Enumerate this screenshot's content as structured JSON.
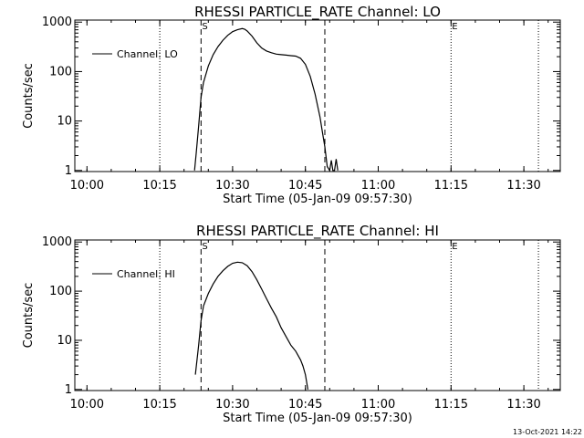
{
  "footer_date": "13-Oct-2021 14:22",
  "chart_data": [
    {
      "type": "line",
      "title": "RHESSI PARTICLE_RATE Channel: LO",
      "xlabel": "Start Time (05-Jan-09 09:57:30)",
      "ylabel": "Counts/sec",
      "y_scale": "log",
      "ylim": [
        0.95,
        1100
      ],
      "x_range": [
        "09:57:30",
        "11:37:30"
      ],
      "xticks": [
        "10:00",
        "10:15",
        "10:30",
        "10:45",
        "11:00",
        "11:15",
        "11:30"
      ],
      "yticks": [
        "1",
        "10",
        "100",
        "1000"
      ],
      "legend": {
        "position": "top-left",
        "entries": [
          "Channel: LO"
        ]
      },
      "markers": [
        {
          "time": "10:23:30",
          "style": "dashed",
          "label": "S"
        },
        {
          "time": "10:49:00",
          "style": "dashed",
          "label": ""
        },
        {
          "time": "10:15:00",
          "style": "dotted",
          "label": ""
        },
        {
          "time": "11:15:00",
          "style": "dotted",
          "label": "E"
        },
        {
          "time": "11:33:00",
          "style": "dotted",
          "label": ""
        }
      ],
      "series": [
        {
          "x": [
            "10:22:10",
            "10:22:30",
            "10:23:00",
            "10:23:30",
            "10:24:00",
            "10:25:00",
            "10:26:00",
            "10:27:00",
            "10:28:00",
            "10:29:00",
            "10:30:00",
            "10:31:00",
            "10:32:00",
            "10:32:30",
            "10:33:00",
            "10:34:00",
            "10:35:00",
            "10:36:00",
            "10:37:00",
            "10:38:00",
            "10:39:00",
            "10:40:00",
            "10:41:00",
            "10:42:00",
            "10:43:00",
            "10:44:00",
            "10:45:00",
            "10:46:00",
            "10:47:00",
            "10:48:00",
            "10:48:30",
            "10:49:00",
            "10:49:30",
            "10:50:00",
            "10:50:20",
            "10:50:40",
            "10:51:00",
            "10:51:20",
            "10:51:40"
          ],
          "y": [
            1.0,
            2.2,
            8,
            30,
            60,
            130,
            220,
            320,
            430,
            540,
            640,
            700,
            740,
            720,
            660,
            520,
            380,
            300,
            260,
            240,
            225,
            220,
            215,
            210,
            205,
            185,
            140,
            80,
            35,
            12,
            6,
            3,
            1.2,
            1.0,
            1.6,
            1.0,
            1.0,
            1.7,
            1.0
          ]
        }
      ]
    },
    {
      "type": "line",
      "title": "RHESSI PARTICLE_RATE Channel: HI",
      "xlabel": "Start Time (05-Jan-09 09:57:30)",
      "ylabel": "Counts/sec",
      "y_scale": "log",
      "ylim": [
        0.95,
        1100
      ],
      "x_range": [
        "09:57:30",
        "11:37:30"
      ],
      "xticks": [
        "10:00",
        "10:15",
        "10:30",
        "10:45",
        "11:00",
        "11:15",
        "11:30"
      ],
      "yticks": [
        "1",
        "10",
        "100",
        "1000"
      ],
      "legend": {
        "position": "top-left",
        "entries": [
          "Channel: HI"
        ]
      },
      "markers": [
        {
          "time": "10:23:30",
          "style": "dashed",
          "label": "S"
        },
        {
          "time": "10:49:00",
          "style": "dashed",
          "label": ""
        },
        {
          "time": "10:15:00",
          "style": "dotted",
          "label": ""
        },
        {
          "time": "11:15:00",
          "style": "dotted",
          "label": "E"
        },
        {
          "time": "11:33:00",
          "style": "dotted",
          "label": ""
        }
      ],
      "series": [
        {
          "x": [
            "10:22:20",
            "10:22:40",
            "10:23:00",
            "10:23:30",
            "10:24:00",
            "10:25:00",
            "10:26:00",
            "10:27:00",
            "10:28:00",
            "10:29:00",
            "10:30:00",
            "10:31:00",
            "10:32:00",
            "10:33:00",
            "10:34:00",
            "10:35:00",
            "10:36:00",
            "10:37:00",
            "10:38:00",
            "10:39:00",
            "10:40:00",
            "10:41:00",
            "10:42:00",
            "10:43:00",
            "10:44:00",
            "10:44:30",
            "10:45:00",
            "10:45:30"
          ],
          "y": [
            2.0,
            4,
            8,
            25,
            50,
            90,
            140,
            200,
            260,
            320,
            370,
            390,
            380,
            330,
            250,
            170,
            110,
            70,
            45,
            30,
            18,
            12,
            8,
            6,
            4,
            3,
            2,
            1.0
          ]
        }
      ]
    }
  ]
}
